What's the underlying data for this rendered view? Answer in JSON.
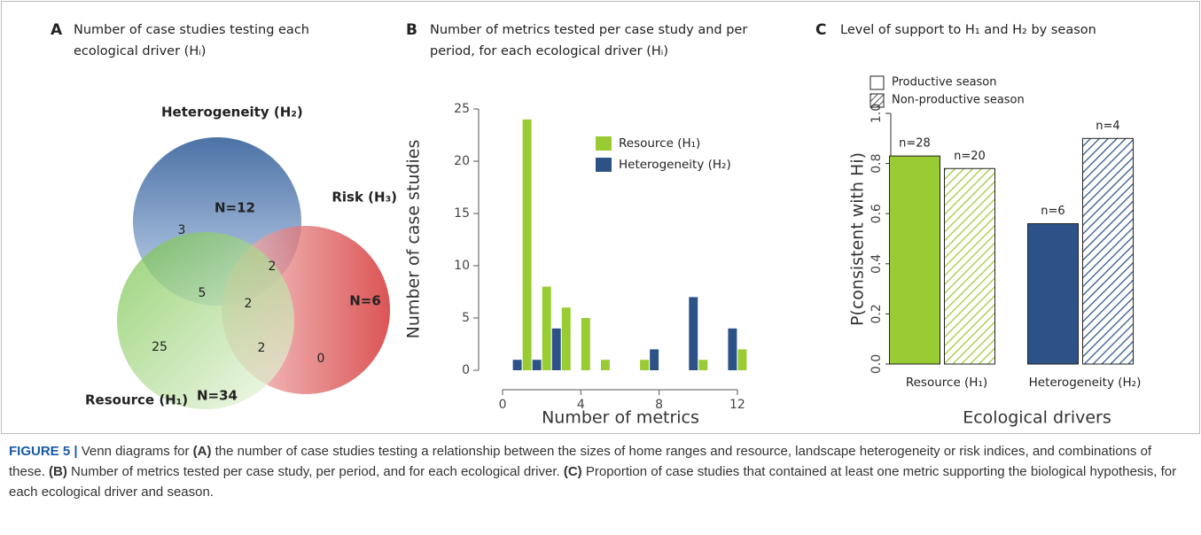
{
  "chart_data": [
    {
      "type": "venn",
      "panel_label": "A",
      "title": [
        "Number of case studies testing each",
        "ecological driver (Hᵢ)"
      ],
      "sets": [
        {
          "name": "Heterogeneity (H₂)",
          "color": "#3d6cb0",
          "label": "N=12"
        },
        {
          "name": "Risk (H₃)",
          "color": "#d42a2a",
          "label": "N=6"
        },
        {
          "name": "Resource (H₁)",
          "color": "#58b135",
          "label": "N=34"
        }
      ],
      "regions": [
        3,
        2,
        5,
        2,
        25,
        2,
        0
      ]
    },
    {
      "type": "grouped_bar",
      "panel_label": "B",
      "title": [
        "Number of metrics tested per case study and per",
        "period, for each ecological driver (Hᵢ)"
      ],
      "x_label": "Number of metrics",
      "y_label": "Number of case studies",
      "series": [
        {
          "name": "Resource (H₁)",
          "color": "#99cc33",
          "x": [
            1,
            2,
            3,
            4,
            5,
            7,
            10,
            12
          ],
          "values": [
            24,
            8,
            6,
            5,
            1,
            1,
            1,
            2
          ]
        },
        {
          "name": "Heterogeneity (H₂)",
          "color": "#2d5287",
          "x": [
            1,
            2,
            3,
            8,
            10,
            12
          ],
          "values": [
            1,
            1,
            4,
            2,
            7,
            4
          ]
        }
      ],
      "xlim": [
        -0.5,
        13
      ],
      "xticks": [
        0,
        4,
        8,
        12
      ],
      "ylim": [
        0,
        25
      ],
      "yticks": [
        0,
        5,
        10,
        15,
        20,
        25
      ],
      "legend": "upper right"
    },
    {
      "type": "bar",
      "panel_label": "C",
      "title": [
        "Level of support to H₁ and H₂ by season"
      ],
      "x_label": "Ecological drivers",
      "y_label": "P(consistent with Hi)",
      "categories": [
        "Resource (H₁)",
        "Heterogeneity (H₂)"
      ],
      "colors": [
        "#99cc33",
        "#2d5287"
      ],
      "series": [
        {
          "name": "Productive season",
          "hatched": false,
          "values": [
            0.83,
            0.56
          ],
          "n_labels": [
            "n=28",
            "n=6"
          ]
        },
        {
          "name": "Non-productive season",
          "hatched": true,
          "values": [
            0.78,
            0.9
          ],
          "n_labels": [
            "n=20",
            "n=4"
          ]
        }
      ],
      "ylim": [
        0,
        1
      ],
      "yticks": [
        {
          "value": 0,
          "label": "0.0"
        },
        0.2,
        0.4,
        0.6,
        0.8,
        {
          "value": 1,
          "label": "1.0"
        }
      ]
    }
  ],
  "caption": [
    "FIGURE 5 |",
    " Venn diagrams for ",
    "(A)",
    " the number of case studies testing a relationship between the sizes of home ranges and resource, landscape heterogeneity or risk indices, and combinations of these. ",
    "(B)",
    " Number of metrics tested per case study, per period, and for each ecological driver. ",
    "(C)",
    " Proportion of case studies that contained at least one metric supporting the biological hypothesis, for each ecological driver and season."
  ]
}
